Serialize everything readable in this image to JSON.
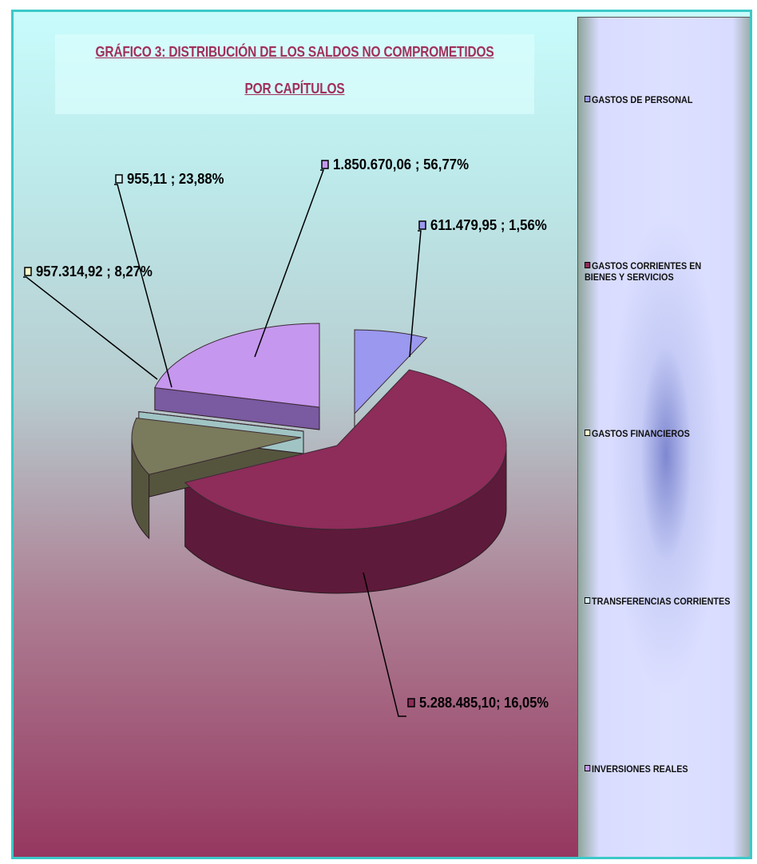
{
  "chart_data": {
    "type": "pie",
    "title": "GRÁFICO 3: DISTRIBUCIÓN DE LOS SALDOS NO COMPROMETIDOS",
    "subtitle": "POR CAPÍTULOS",
    "slices": [
      {
        "category": "GASTOS DE PERSONAL",
        "label": "611.479,95 ; 1,56%",
        "value": 611479.95,
        "color": "#9a98ef",
        "side": "#5a5a9e",
        "swatch": "#9a98ef"
      },
      {
        "category": "GASTOS CORRIENTES EN BIENES Y SERVICIOS",
        "label": "5.288.485,10; 16,05%",
        "value": 5288485.1,
        "color": "#8e2c5a",
        "side": "#5e1a3a",
        "swatch": "#8e2c5a"
      },
      {
        "category": "GASTOS FINANCIEROS",
        "label": "957.314,92 ; 8,27%",
        "value": 957314.92,
        "color": "#7a7a5c",
        "side": "#55553e",
        "swatch": "#ffffc8"
      },
      {
        "category": "TRANSFERENCIAS CORRIENTES",
        "label": "955,11 ; 23,88%",
        "value": 955.11,
        "color": "#d6f6f6",
        "side": "#a0c4c4",
        "swatch": "#d6f6f6"
      },
      {
        "category": "INVERSIONES REALES",
        "label": "1.850.670,06 ; 56,77%",
        "value": 1850670.06,
        "color": "#c597ee",
        "side": "#7a5aa0",
        "swatch": "#c597ee"
      }
    ],
    "legend_position": "right"
  }
}
